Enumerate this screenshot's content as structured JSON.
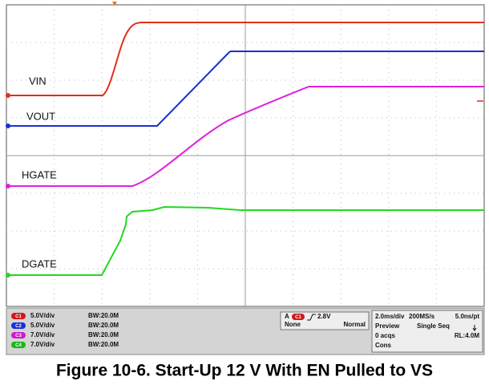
{
  "screen": {
    "trace_labels": [
      "VIN",
      "VOUT",
      "HGATE",
      "DGATE"
    ]
  },
  "channels": [
    {
      "badge": "C1",
      "scale": "5.0V/div",
      "bandwidth": "BW:20.0M"
    },
    {
      "badge": "C2",
      "scale": "5.0V/div",
      "bandwidth": "BW:20.0M"
    },
    {
      "badge": "C3",
      "scale": "7.0V/div",
      "bandwidth": "BW:20.0M"
    },
    {
      "badge": "C4",
      "scale": "7.0V/div",
      "bandwidth": "BW:20.0M"
    }
  ],
  "trigger": {
    "source": "A",
    "channel": "C1",
    "level": "2.8V",
    "coupling": "None",
    "mode": "Normal"
  },
  "acquisition": {
    "timebase": "2.0ms/div",
    "sample_rate": "200MS/s",
    "resolution": "5.0ns/pt",
    "state": "Preview",
    "run_mode": "Single Seq",
    "acqs": "0 acqs",
    "record_length": "RL:4.0M",
    "status": "Cons"
  },
  "caption": "Figure 10-6. Start-Up 12 V With EN Pulled to VS"
}
